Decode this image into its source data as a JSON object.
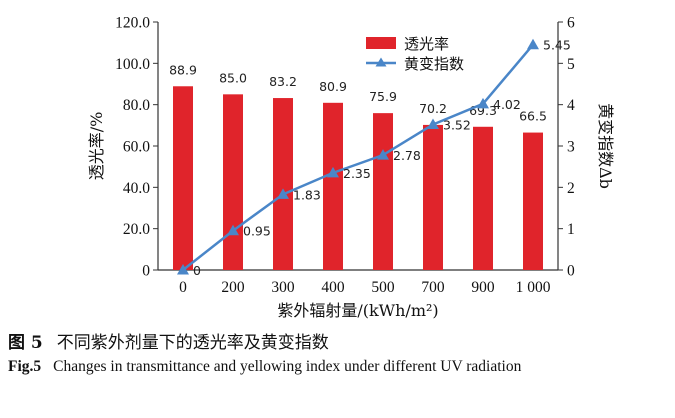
{
  "chart_data": {
    "type": "bar+line",
    "categories": [
      "0",
      "200",
      "300",
      "400",
      "500",
      "700",
      "900",
      "1 000"
    ],
    "series": [
      {
        "name": "透光率",
        "type": "bar",
        "axis": "left",
        "color": "#e0242b",
        "values": [
          88.9,
          85.0,
          83.2,
          80.9,
          75.9,
          70.2,
          69.3,
          66.5
        ],
        "labels": [
          "88.9",
          "85.0",
          "83.2",
          "80.9",
          "75.9",
          "70.2",
          "69.3",
          "66.5"
        ]
      },
      {
        "name": "黄变指数",
        "type": "line",
        "axis": "right",
        "color": "#4a86c8",
        "marker": "triangle",
        "values": [
          0,
          0.95,
          1.83,
          2.35,
          2.78,
          3.52,
          4.02,
          5.45
        ],
        "labels": [
          "0",
          "0.95",
          "1.83",
          "2.35",
          "2.78",
          "3.52",
          "4.02",
          "5.45"
        ]
      }
    ],
    "xlabel": "紫外辐射量/(kWh/m²)",
    "ylabel_left": "透光率/%",
    "ylabel_right": "黄变指数Δb",
    "ylim_left": [
      0,
      120
    ],
    "ylim_right": [
      0,
      6
    ],
    "yticks_left": [
      "0",
      "20.0",
      "40.0",
      "60.0",
      "80.0",
      "100.0",
      "120.0"
    ],
    "yticks_right": [
      "0",
      "1",
      "2",
      "3",
      "4",
      "5",
      "6"
    ],
    "grid": false,
    "legend": "top-right"
  },
  "caption": {
    "cn_label": "图 5",
    "cn_text": "不同紫外剂量下的透光率及黄变指数",
    "en_label": "Fig.5",
    "en_text": "Changes in transmittance and yellowing index under different UV radiation"
  }
}
